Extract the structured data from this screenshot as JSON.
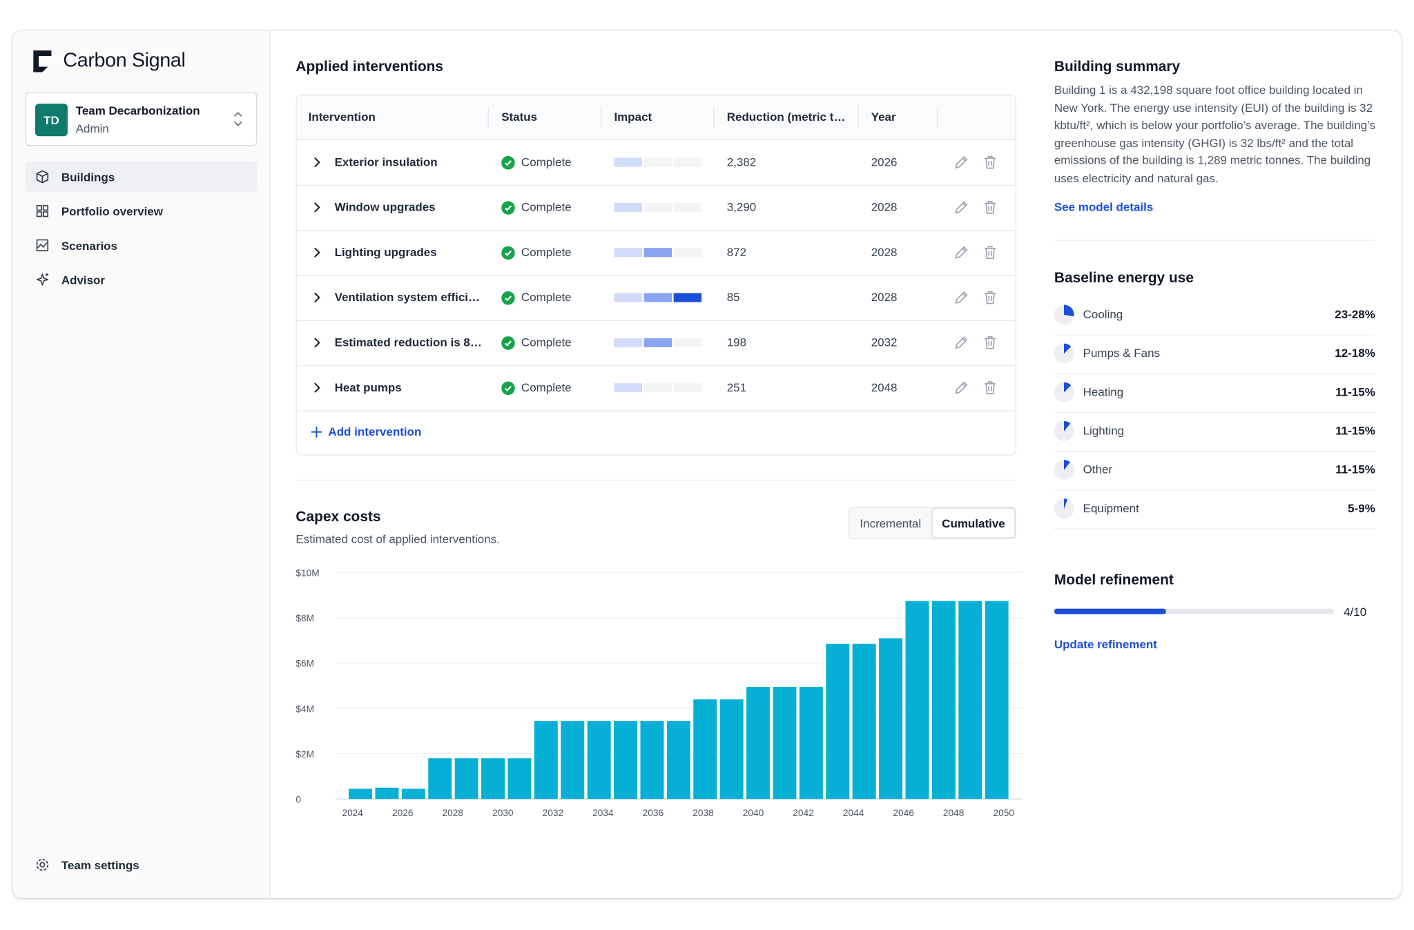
{
  "sidebar": {
    "brand": "Carbon Signal",
    "team": {
      "initials": "TD",
      "name": "Team Decarbonization",
      "role": "Admin"
    },
    "nav": [
      "Buildings",
      "Portfolio overview",
      "Scenarios",
      "Advisor"
    ],
    "settings": "Team settings"
  },
  "interventions": {
    "title": "Applied interventions",
    "columns": [
      "Intervention",
      "Status",
      "Impact",
      "Reduction (metric t…",
      "Year"
    ],
    "rows": [
      {
        "name": "Exterior insulation",
        "status": "Complete",
        "impact": 1,
        "reduction": "2,382",
        "year": 2026
      },
      {
        "name": "Window upgrades",
        "status": "Complete",
        "impact": 1,
        "reduction": "3,290",
        "year": 2028
      },
      {
        "name": "Lighting upgrades",
        "status": "Complete",
        "impact": 2,
        "reduction": "872",
        "year": 2028
      },
      {
        "name": "Ventilation system effici…",
        "status": "Complete",
        "impact": 3,
        "reduction": "85",
        "year": 2028
      },
      {
        "name": "Estimated reduction is 8…",
        "status": "Complete",
        "impact": 2,
        "reduction": "198",
        "year": 2032
      },
      {
        "name": "Heat pumps",
        "status": "Complete",
        "impact": 1,
        "reduction": "251",
        "year": 2048
      }
    ],
    "add": "Add intervention"
  },
  "capex": {
    "title": "Capex costs",
    "subtitle": "Estimated cost of applied interventions.",
    "toggle": [
      "Incremental",
      "Cumulative"
    ],
    "active": 1
  },
  "chart_data": {
    "type": "bar",
    "color": "#06b0d4",
    "grid": true,
    "values": [
      450000,
      500000,
      450000,
      1800000,
      1800000,
      1800000,
      1800000,
      3450000,
      3450000,
      3450000,
      3450000,
      3450000,
      3450000,
      4400000,
      4400000,
      4950000,
      4950000,
      4950000,
      6850000,
      6850000,
      7100000,
      8750000,
      8750000,
      8750000,
      8750000
    ],
    "ylim": [
      0,
      10000000
    ],
    "yticks": [
      0,
      {
        "value": 2000000,
        "label": "$2M"
      },
      {
        "value": 4000000,
        "label": "$4M"
      },
      {
        "value": 6000000,
        "label": "$6M"
      },
      {
        "value": 8000000,
        "label": "$8M"
      },
      {
        "value": 10000000,
        "label": "$10M"
      }
    ],
    "xticks": [
      2024,
      2026,
      2028,
      2030,
      2032,
      2034,
      2036,
      2038,
      2040,
      2042,
      2044,
      2046,
      2048,
      2050
    ]
  },
  "summary": {
    "title": "Building summary",
    "text": "Building 1 is a 432,198 square foot office building located in New York. The energy use intensity (EUI) of the building is 32 kbtu/ft², which is below your portfolio’s average. The building’s greenhouse gas intensity (GHGI) is 32 lbs/ft² and the total emissions of the building is 1,289 metric tonnes. The building uses electricity and natural gas.",
    "link": "See model details"
  },
  "energy": {
    "title": "Baseline energy use",
    "items": [
      {
        "name": "Cooling",
        "range": "23-28%"
      },
      {
        "name": "Pumps & Fans",
        "range": "12-18%"
      },
      {
        "name": "Heating",
        "range": "11-15%"
      },
      {
        "name": "Lighting",
        "range": "11-15%"
      },
      {
        "name": "Other",
        "range": "11-15%"
      },
      {
        "name": "Equipment",
        "range": "5-9%"
      }
    ]
  },
  "refinement": {
    "title": "Model refinement",
    "progress": {
      "value": 4,
      "max": 10,
      "label": "4/10"
    },
    "link": "Update refinement"
  }
}
